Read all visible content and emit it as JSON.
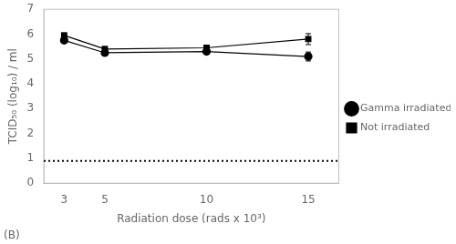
{
  "chart_data": {
    "type": "line",
    "x": [
      3,
      5,
      10,
      15
    ],
    "series": [
      {
        "name": "Gamma irradiated",
        "color": "#000000",
        "marker": "circle",
        "values": [
          5.75,
          5.25,
          5.3,
          5.1
        ],
        "errors": [
          0.1,
          0.1,
          0.1,
          0.18
        ]
      },
      {
        "name": "Not irradiated",
        "color": "#000000",
        "marker": "square",
        "values": [
          5.95,
          5.4,
          5.45,
          5.8
        ],
        "errors": [
          0.1,
          0.1,
          0.08,
          0.22
        ]
      }
    ],
    "hlines": [
      {
        "y": 0.9,
        "line_style": "dotted",
        "color": "#000000"
      }
    ],
    "xlabel": "Radiation dose (rads x 10³)",
    "ylabel": "TCID₅₀ (log₁₀) / ml",
    "xlim": [
      2,
      16.5
    ],
    "ylim": [
      0,
      7
    ],
    "xticks": [
      3,
      5,
      10,
      15
    ],
    "yticks": [
      0,
      1,
      2,
      3,
      4,
      5,
      6,
      7
    ],
    "grid": false,
    "legend": "right",
    "annotations": [
      {
        "text": "(B)"
      }
    ]
  }
}
